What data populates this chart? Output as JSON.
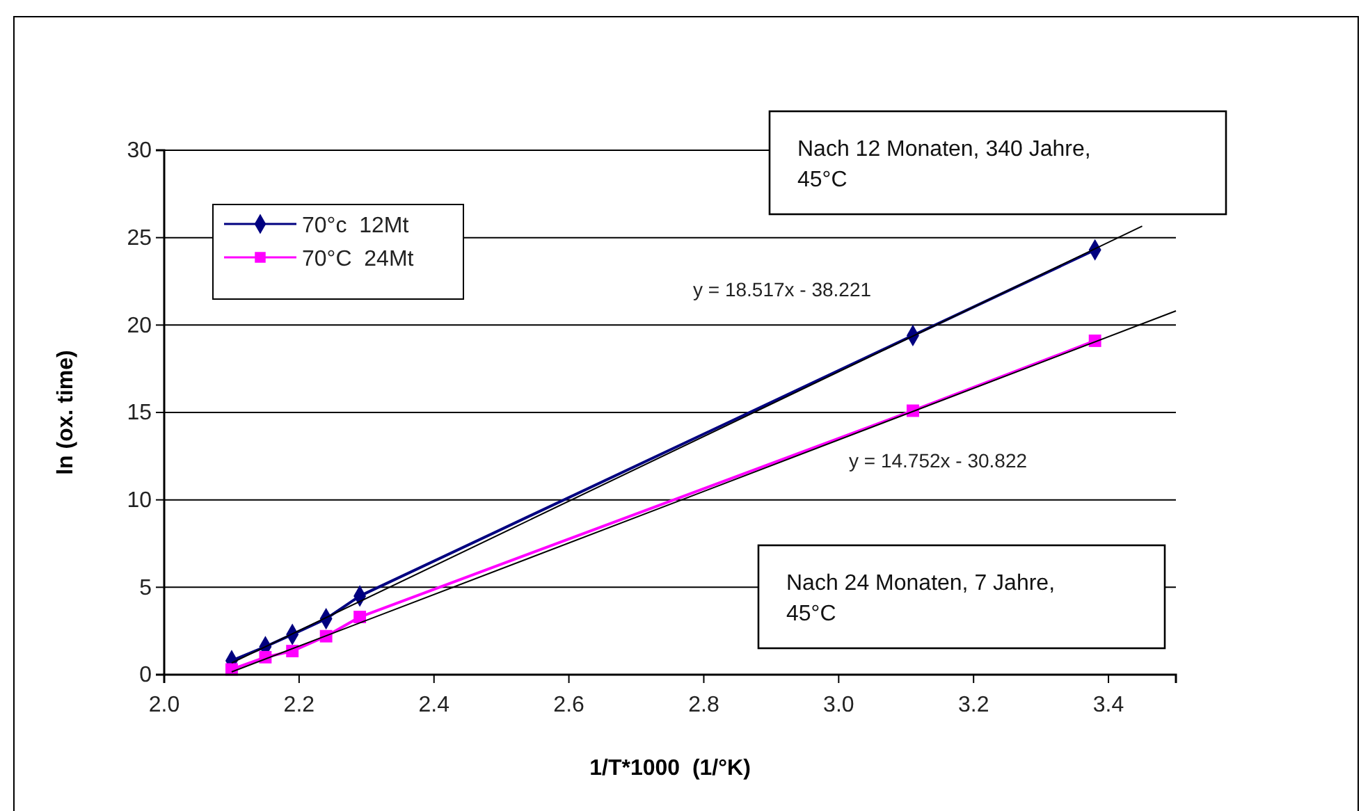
{
  "chart_data": {
    "type": "line",
    "xlabel": "1/T*1000  (1/°K)",
    "ylabel": "ln (ox. time)",
    "xlim": [
      2.0,
      3.5
    ],
    "xticks": [
      {
        "value": 2.0,
        "label": "2.0"
      },
      {
        "value": 2.2,
        "label": "2.2"
      },
      {
        "value": 2.4,
        "label": "2.4"
      },
      {
        "value": 2.6,
        "label": "2.6"
      },
      {
        "value": 2.8,
        "label": "2.8"
      },
      {
        "value": 3.0,
        "label": "3.0"
      },
      {
        "value": 3.2,
        "label": "3.2"
      },
      {
        "value": 3.4,
        "label": "3.4"
      }
    ],
    "ylim": [
      0,
      30
    ],
    "yticks": [
      0,
      5,
      10,
      15,
      20,
      25,
      30
    ],
    "grid": "y",
    "legend": "top left",
    "series": [
      {
        "name": "70°c  12Mt",
        "color": "#000080",
        "marker": "diamond",
        "x": [
          2.1,
          2.15,
          2.19,
          2.24,
          2.29,
          3.11,
          3.38
        ],
        "values": [
          0.8,
          1.6,
          2.3,
          3.2,
          4.5,
          19.4,
          24.3
        ]
      },
      {
        "name": "70°C  24Mt",
        "color": "#ff00ff",
        "marker": "square",
        "x": [
          2.1,
          2.15,
          2.19,
          2.24,
          2.29,
          3.11,
          3.38
        ],
        "values": [
          0.3,
          1.0,
          1.35,
          2.2,
          3.3,
          15.1,
          19.1
        ]
      },
      {
        "color": "#000000",
        "marker": "none",
        "x": [
          2.1,
          3.45
        ],
        "values": [
          0.67,
          25.66
        ]
      },
      {
        "color": "#000000",
        "marker": "none",
        "x": [
          2.1,
          3.5
        ],
        "values": [
          0.16,
          20.81
        ]
      }
    ],
    "annotations": [
      "y = 18.517x - 38.221",
      "y = 14.752x - 30.822",
      "Nach 12 Monaten, 340 Jahre, 45°C",
      "Nach 24 Monaten, 7 Jahre, 45°C"
    ]
  }
}
